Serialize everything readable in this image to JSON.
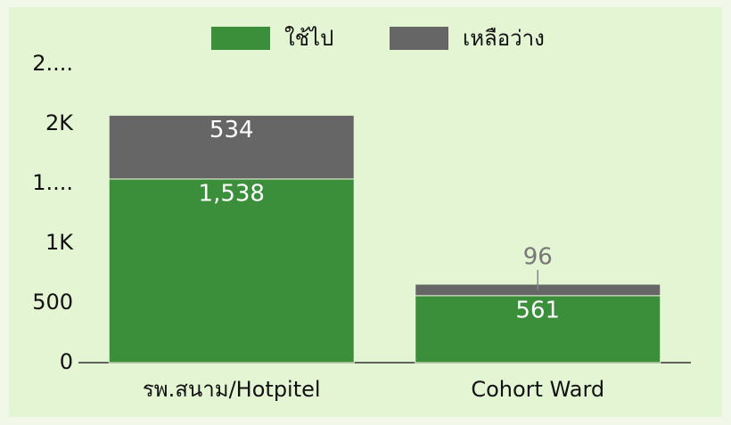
{
  "chart_data": {
    "type": "stacked_bar",
    "categories": [
      "รพ.สนาม/Hotpitel",
      "Cohort Ward"
    ],
    "series": [
      {
        "name": "ใช้ไป",
        "color": "#3b8f3b",
        "values": [
          1538,
          561
        ],
        "value_labels": [
          "1,538",
          "561"
        ]
      },
      {
        "name": "เหลือว่าง",
        "color": "#666666",
        "values": [
          534,
          96
        ]
      }
    ],
    "ylim": [
      0,
      2500
    ],
    "yticks": [
      0,
      500,
      {
        "value": 1000,
        "label": "1K"
      },
      {
        "value": 1500,
        "label": "1...."
      },
      {
        "value": 2000,
        "label": "2K"
      },
      {
        "value": 2500,
        "label": "2...."
      }
    ],
    "legend": "top"
  }
}
